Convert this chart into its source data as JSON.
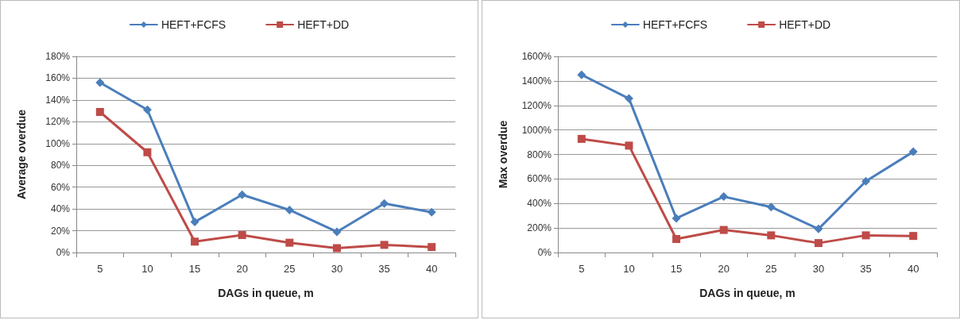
{
  "chart_data": [
    {
      "type": "line",
      "xlabel": "DAGs in queue, m",
      "ylabel": "Average overdue",
      "categories": [
        "5",
        "10",
        "15",
        "20",
        "25",
        "30",
        "35",
        "40"
      ],
      "series": [
        {
          "name": "HEFT+FCFS",
          "color": "#4a7ebb",
          "marker": "diamond",
          "values": [
            156,
            131,
            28,
            53,
            39,
            19,
            45,
            37
          ]
        },
        {
          "name": "HEFT+DD",
          "color": "#be4b48",
          "marker": "square",
          "values": [
            129,
            92,
            10,
            16,
            9,
            4,
            7,
            5
          ]
        }
      ],
      "ylim": [
        0,
        180
      ],
      "yticks": [
        {
          "value": 0,
          "label": "0%"
        },
        {
          "value": 20,
          "label": "20%"
        },
        {
          "value": 40,
          "label": "40%"
        },
        {
          "value": 60,
          "label": "60%"
        },
        {
          "value": 80,
          "label": "80%"
        },
        {
          "value": 100,
          "label": "100%"
        },
        {
          "value": 120,
          "label": "120%"
        },
        {
          "value": 140,
          "label": "140%"
        },
        {
          "value": 160,
          "label": "160%"
        },
        {
          "value": 180,
          "label": "180%"
        }
      ],
      "grid": "y",
      "legend": "top"
    },
    {
      "type": "line",
      "xlabel": "DAGs in queue, m",
      "ylabel": "Max overdue",
      "categories": [
        "5",
        "10",
        "15",
        "20",
        "25",
        "30",
        "35",
        "40"
      ],
      "series": [
        {
          "name": "HEFT+FCFS",
          "color": "#4a7ebb",
          "marker": "diamond",
          "values": [
            1450,
            1256,
            279,
            456,
            371,
            192,
            581,
            822
          ]
        },
        {
          "name": "HEFT+DD",
          "color": "#be4b48",
          "marker": "square",
          "values": [
            927,
            872,
            110,
            184,
            140,
            77,
            140,
            135
          ]
        }
      ],
      "ylim": [
        0,
        1600
      ],
      "yticks": [
        {
          "value": 0,
          "label": "0%"
        },
        {
          "value": 200,
          "label": "200%"
        },
        {
          "value": 400,
          "label": "400%"
        },
        {
          "value": 600,
          "label": "600%"
        },
        {
          "value": 800,
          "label": "800%"
        },
        {
          "value": 1000,
          "label": "1000%"
        },
        {
          "value": 1200,
          "label": "1200%"
        },
        {
          "value": 1400,
          "label": "1400%"
        },
        {
          "value": 1600,
          "label": "1600%"
        }
      ],
      "grid": "y",
      "legend": "top"
    }
  ]
}
